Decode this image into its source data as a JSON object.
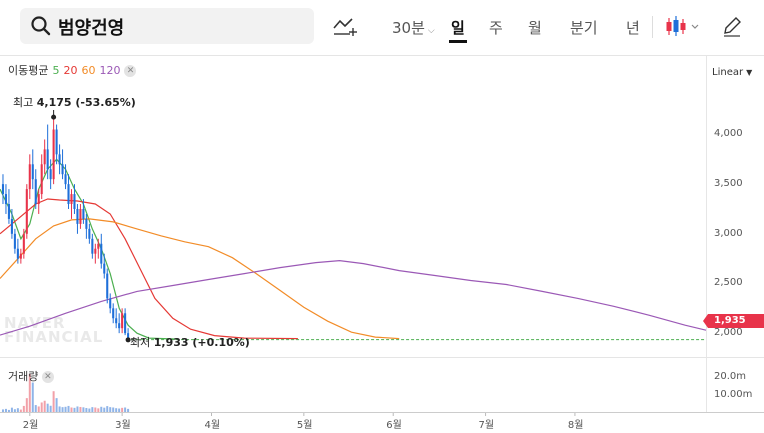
{
  "header": {
    "title": "범양건영",
    "interval_label": "30분",
    "periods": [
      "일",
      "주",
      "월",
      "분기",
      "년"
    ],
    "active_period": "일"
  },
  "indicators": {
    "ma_label": "이동평균",
    "ma_periods": [
      {
        "label": "5",
        "color": "#4caf50"
      },
      {
        "label": "20",
        "color": "#e53935"
      },
      {
        "label": "60",
        "color": "#f28c28"
      },
      {
        "label": "120",
        "color": "#9b59b6"
      }
    ],
    "volume_label": "거래량"
  },
  "scale_mode": "Linear",
  "annotations": {
    "high_label": "최고",
    "high_value": "4,175 (-53.65%)",
    "low_label": "최저",
    "low_value": "1,933 (+0.10%)"
  },
  "current_price": "1,935",
  "watermark": [
    "NAVER",
    "FINANCIAL"
  ],
  "colors": {
    "up": "#e8334a",
    "down": "#1e6fd9",
    "up_light": "#f2a0a8",
    "down_light": "#8fb4e8"
  },
  "chart_data": {
    "type": "candlestick",
    "title": "범양건영",
    "y_ticks": [
      4000,
      3500,
      3000,
      2500,
      2000
    ],
    "y_tick_labels": [
      "4,000",
      "3,500",
      "3,000",
      "2,500",
      "2,000"
    ],
    "ylim": [
      1760,
      4790
    ],
    "x_ticks": [
      "2월",
      "3월",
      "4월",
      "5월",
      "6월",
      "7월",
      "8월"
    ],
    "x_tick_days": [
      0,
      31,
      61,
      92,
      122,
      153,
      183
    ],
    "x_range_days": [
      -10,
      227
    ],
    "last_day": 227,
    "candles": [
      {
        "d": -9,
        "o": 3500,
        "h": 3600,
        "l": 3300,
        "c": 3400
      },
      {
        "d": -8,
        "o": 3400,
        "h": 3500,
        "l": 3200,
        "c": 3300
      },
      {
        "d": -7,
        "o": 3300,
        "h": 3450,
        "l": 3100,
        "c": 3150
      },
      {
        "d": -6,
        "o": 3150,
        "h": 3250,
        "l": 2950,
        "c": 3000
      },
      {
        "d": -5,
        "o": 3000,
        "h": 3050,
        "l": 2800,
        "c": 2850
      },
      {
        "d": -4,
        "o": 2850,
        "h": 2950,
        "l": 2700,
        "c": 2750
      },
      {
        "d": -3,
        "o": 2750,
        "h": 2850,
        "l": 2700,
        "c": 2800
      },
      {
        "d": -2,
        "o": 2800,
        "h": 3050,
        "l": 2750,
        "c": 3000
      },
      {
        "d": -1,
        "o": 3000,
        "h": 3500,
        "l": 2950,
        "c": 3450
      },
      {
        "d": 0,
        "o": 3450,
        "h": 3800,
        "l": 3350,
        "c": 3700
      },
      {
        "d": 1,
        "o": 3700,
        "h": 3850,
        "l": 3450,
        "c": 3550
      },
      {
        "d": 2,
        "o": 3550,
        "h": 3650,
        "l": 3250,
        "c": 3300
      },
      {
        "d": 3,
        "o": 3300,
        "h": 3450,
        "l": 3200,
        "c": 3400
      },
      {
        "d": 4,
        "o": 3400,
        "h": 3800,
        "l": 3350,
        "c": 3700
      },
      {
        "d": 5,
        "o": 3700,
        "h": 3950,
        "l": 3600,
        "c": 3850
      },
      {
        "d": 6,
        "o": 3850,
        "h": 4100,
        "l": 3550,
        "c": 3650
      },
      {
        "d": 7,
        "o": 3650,
        "h": 3750,
        "l": 3450,
        "c": 3550
      },
      {
        "d": 8,
        "o": 3550,
        "h": 4175,
        "l": 3500,
        "c": 4050
      },
      {
        "d": 9,
        "o": 4050,
        "h": 4100,
        "l": 3700,
        "c": 3800
      },
      {
        "d": 10,
        "o": 3800,
        "h": 3900,
        "l": 3600,
        "c": 3700
      },
      {
        "d": 11,
        "o": 3700,
        "h": 3850,
        "l": 3550,
        "c": 3600
      },
      {
        "d": 12,
        "o": 3600,
        "h": 3700,
        "l": 3450,
        "c": 3500
      },
      {
        "d": 13,
        "o": 3500,
        "h": 3600,
        "l": 3250,
        "c": 3300
      },
      {
        "d": 14,
        "o": 3300,
        "h": 3450,
        "l": 3150,
        "c": 3400
      },
      {
        "d": 15,
        "o": 3400,
        "h": 3500,
        "l": 3200,
        "c": 3250
      },
      {
        "d": 16,
        "o": 3250,
        "h": 3300,
        "l": 3000,
        "c": 3100
      },
      {
        "d": 17,
        "o": 3100,
        "h": 3300,
        "l": 3050,
        "c": 3250
      },
      {
        "d": 18,
        "o": 3250,
        "h": 3350,
        "l": 3100,
        "c": 3150
      },
      {
        "d": 19,
        "o": 3150,
        "h": 3200,
        "l": 2950,
        "c": 3050
      },
      {
        "d": 20,
        "o": 3050,
        "h": 3100,
        "l": 2900,
        "c": 2950
      },
      {
        "d": 21,
        "o": 2950,
        "h": 3000,
        "l": 2750,
        "c": 2800
      },
      {
        "d": 22,
        "o": 2800,
        "h": 2900,
        "l": 2700,
        "c": 2850
      },
      {
        "d": 23,
        "o": 2850,
        "h": 2950,
        "l": 2750,
        "c": 2900
      },
      {
        "d": 24,
        "o": 2900,
        "h": 3000,
        "l": 2650,
        "c": 2700
      },
      {
        "d": 25,
        "o": 2700,
        "h": 2800,
        "l": 2550,
        "c": 2600
      },
      {
        "d": 26,
        "o": 2600,
        "h": 2650,
        "l": 2300,
        "c": 2350
      },
      {
        "d": 27,
        "o": 2350,
        "h": 2400,
        "l": 2200,
        "c": 2250
      },
      {
        "d": 28,
        "o": 2250,
        "h": 2300,
        "l": 2100,
        "c": 2150
      },
      {
        "d": 29,
        "o": 2150,
        "h": 2250,
        "l": 2050,
        "c": 2100
      },
      {
        "d": 30,
        "o": 2100,
        "h": 2200,
        "l": 2000,
        "c": 2050
      },
      {
        "d": 31,
        "o": 2050,
        "h": 2250,
        "l": 2000,
        "c": 2200
      },
      {
        "d": 32,
        "o": 2200,
        "h": 2250,
        "l": 1980,
        "c": 2000
      },
      {
        "d": 33,
        "o": 2000,
        "h": 2050,
        "l": 1933,
        "c": 1950
      }
    ],
    "ma_lines": [
      {
        "name": "5",
        "color": "#4caf50",
        "points": [
          [
            -10,
            3450
          ],
          [
            -6,
            3200
          ],
          [
            -3,
            2950
          ],
          [
            0,
            3100
          ],
          [
            3,
            3450
          ],
          [
            6,
            3650
          ],
          [
            9,
            3750
          ],
          [
            12,
            3650
          ],
          [
            15,
            3450
          ],
          [
            18,
            3300
          ],
          [
            21,
            3050
          ],
          [
            24,
            2850
          ],
          [
            27,
            2600
          ],
          [
            30,
            2250
          ],
          [
            33,
            2080
          ],
          [
            36,
            2000
          ],
          [
            40,
            1950
          ],
          [
            50,
            1940
          ]
        ]
      },
      {
        "name": "20",
        "color": "#e53935",
        "points": [
          [
            -10,
            3000
          ],
          [
            -4,
            3150
          ],
          [
            2,
            3300
          ],
          [
            6,
            3350
          ],
          [
            10,
            3340
          ],
          [
            16,
            3330
          ],
          [
            22,
            3300
          ],
          [
            27,
            3200
          ],
          [
            32,
            2950
          ],
          [
            37,
            2650
          ],
          [
            42,
            2350
          ],
          [
            48,
            2150
          ],
          [
            54,
            2040
          ],
          [
            62,
            1975
          ],
          [
            72,
            1950
          ],
          [
            90,
            1945
          ]
        ]
      },
      {
        "name": "60",
        "color": "#f28c28",
        "points": [
          [
            -10,
            2550
          ],
          [
            -4,
            2750
          ],
          [
            2,
            2950
          ],
          [
            8,
            3080
          ],
          [
            14,
            3140
          ],
          [
            20,
            3150
          ],
          [
            28,
            3120
          ],
          [
            36,
            3050
          ],
          [
            44,
            2980
          ],
          [
            52,
            2920
          ],
          [
            60,
            2870
          ],
          [
            68,
            2760
          ],
          [
            76,
            2600
          ],
          [
            84,
            2430
          ],
          [
            92,
            2260
          ],
          [
            100,
            2120
          ],
          [
            108,
            2010
          ],
          [
            116,
            1960
          ],
          [
            124,
            1945
          ]
        ]
      },
      {
        "name": "120",
        "color": "#9b59b6",
        "points": [
          [
            -10,
            1980
          ],
          [
            0,
            2070
          ],
          [
            12,
            2200
          ],
          [
            24,
            2320
          ],
          [
            36,
            2420
          ],
          [
            48,
            2480
          ],
          [
            60,
            2540
          ],
          [
            72,
            2600
          ],
          [
            84,
            2660
          ],
          [
            96,
            2710
          ],
          [
            104,
            2730
          ],
          [
            112,
            2700
          ],
          [
            124,
            2630
          ],
          [
            136,
            2580
          ],
          [
            148,
            2530
          ],
          [
            160,
            2490
          ],
          [
            172,
            2420
          ],
          [
            184,
            2350
          ],
          [
            196,
            2270
          ],
          [
            208,
            2180
          ],
          [
            220,
            2080
          ],
          [
            227,
            2030
          ]
        ]
      }
    ],
    "flat_line": {
      "value": 1935,
      "from_day": 34,
      "to_day": 227
    },
    "volume": {
      "y_ticks": [
        20000000,
        10000000
      ],
      "y_tick_labels": [
        "20.0m",
        "10.00m"
      ],
      "max": 30000000,
      "bars": [
        [
          -9,
          1500000
        ],
        [
          -8,
          1800000
        ],
        [
          -7,
          1200000
        ],
        [
          -6,
          2500000
        ],
        [
          -5,
          1600000
        ],
        [
          -4,
          2200000
        ],
        [
          -3,
          1400000
        ],
        [
          -2,
          3500000
        ],
        [
          -1,
          8000000
        ],
        [
          0,
          22000000
        ],
        [
          1,
          17000000
        ],
        [
          2,
          4000000
        ],
        [
          3,
          3200000
        ],
        [
          4,
          5500000
        ],
        [
          5,
          6500000
        ],
        [
          6,
          4800000
        ],
        [
          7,
          3600000
        ],
        [
          8,
          12000000
        ],
        [
          9,
          8000000
        ],
        [
          10,
          3200000
        ],
        [
          11,
          2800000
        ],
        [
          12,
          3000000
        ],
        [
          13,
          3500000
        ],
        [
          14,
          2600000
        ],
        [
          15,
          2400000
        ],
        [
          16,
          3200000
        ],
        [
          17,
          2900000
        ],
        [
          18,
          2700000
        ],
        [
          19,
          2300000
        ],
        [
          20,
          2000000
        ],
        [
          21,
          2800000
        ],
        [
          22,
          2600000
        ],
        [
          23,
          2100000
        ],
        [
          24,
          3000000
        ],
        [
          25,
          2500000
        ],
        [
          26,
          3400000
        ],
        [
          27,
          2800000
        ],
        [
          28,
          2600000
        ],
        [
          29,
          2200000
        ],
        [
          30,
          2000000
        ],
        [
          31,
          2400000
        ],
        [
          32,
          2600000
        ],
        [
          33,
          1800000
        ]
      ]
    }
  }
}
